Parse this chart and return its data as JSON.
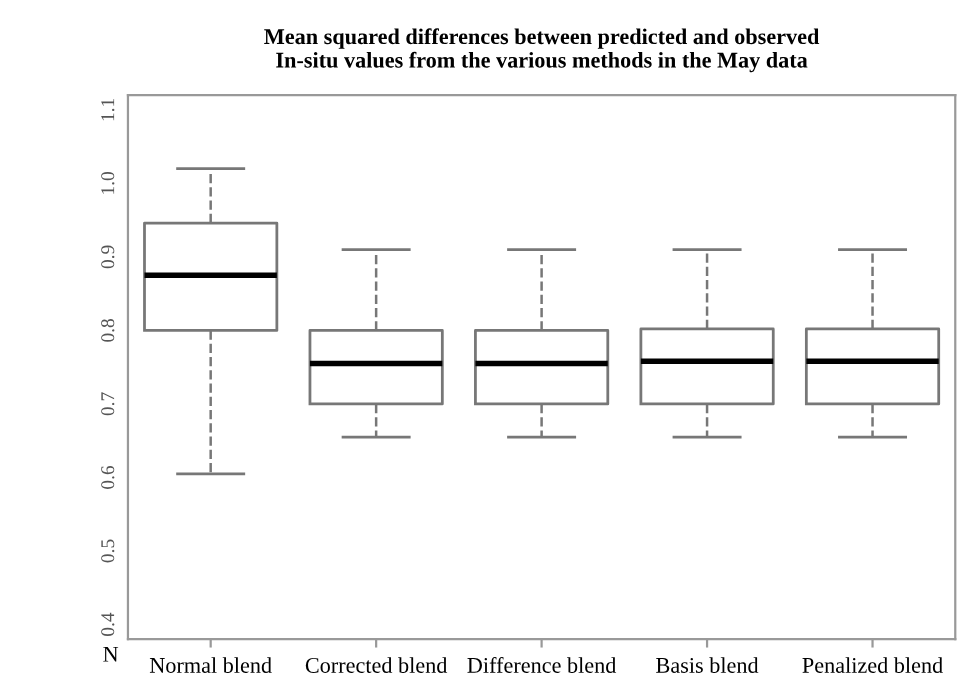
{
  "chart_data": {
    "type": "box",
    "title": "Mean squared differences between predicted and observed\nIn-situ values from the various methods in the May data",
    "categories": [
      "Normal blend",
      "Corrected blend",
      "Difference blend",
      "Basis blend",
      "Penalized blend"
    ],
    "boxes": [
      {
        "low": 0.605,
        "q1": 0.8,
        "median": 0.875,
        "q3": 0.946,
        "high": 1.02
      },
      {
        "low": 0.655,
        "q1": 0.7,
        "median": 0.755,
        "q3": 0.8,
        "high": 0.91
      },
      {
        "low": 0.655,
        "q1": 0.7,
        "median": 0.755,
        "q3": 0.8,
        "high": 0.91
      },
      {
        "low": 0.655,
        "q1": 0.7,
        "median": 0.758,
        "q3": 0.802,
        "high": 0.91
      },
      {
        "low": 0.655,
        "q1": 0.7,
        "median": 0.758,
        "q3": 0.802,
        "high": 0.91
      }
    ],
    "ylim": [
      0.38,
      1.12
    ],
    "yticks": [
      0.4,
      0.5,
      0.6,
      0.7,
      0.8,
      0.9,
      {
        "value": 1.0,
        "label": "1.0"
      },
      1.1
    ],
    "annotations": [
      "N"
    ],
    "grid": false
  }
}
